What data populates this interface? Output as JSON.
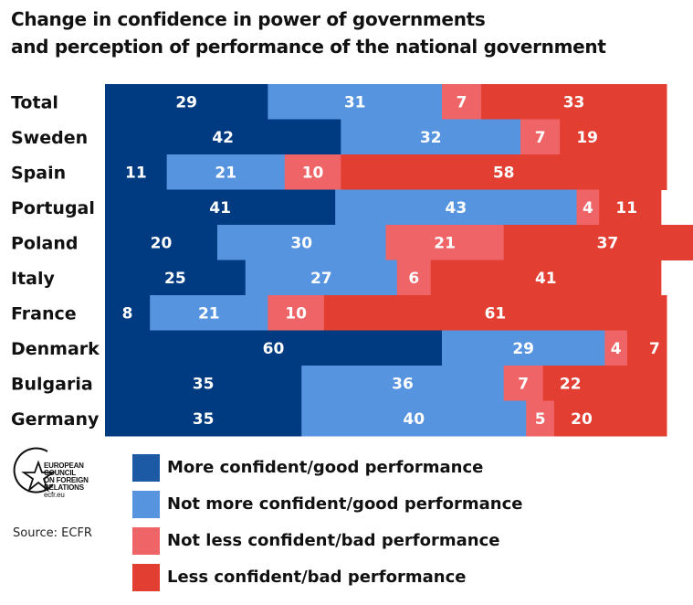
{
  "title": {
    "line1": "Change in confidence in power of governments",
    "line2": "and perception of performance of the national government"
  },
  "chart_data": {
    "type": "bar",
    "orientation": "horizontal",
    "stacked": true,
    "categories": [
      "Total",
      "Sweden",
      "Spain",
      "Portugal",
      "Poland",
      "Italy",
      "France",
      "Denmark",
      "Bulgaria",
      "Germany"
    ],
    "series": [
      {
        "name": "More confident/good performance",
        "color": "#003a80",
        "values": [
          29,
          42,
          11,
          41,
          20,
          25,
          8,
          60,
          35,
          35
        ]
      },
      {
        "name": "Not more confident/good performance",
        "color": "#5694e0",
        "values": [
          31,
          32,
          21,
          43,
          30,
          27,
          21,
          29,
          36,
          40
        ]
      },
      {
        "name": "Not less confident/bad performance",
        "color": "#ef6466",
        "values": [
          7,
          7,
          10,
          4,
          21,
          6,
          10,
          4,
          7,
          5
        ]
      },
      {
        "name": "Less confident/bad performance",
        "color": "#e33e32",
        "values": [
          33,
          19,
          58,
          11,
          37,
          41,
          61,
          7,
          22,
          20
        ]
      }
    ],
    "legend_position": "bottom",
    "grid": false
  },
  "legend": {
    "items": [
      {
        "label": "More confident/good performance",
        "color": "#1c5aa6"
      },
      {
        "label": "Not more confident/good performance",
        "color": "#5694e0"
      },
      {
        "label": "Not less confident/bad performance",
        "color": "#ef6466"
      },
      {
        "label": "Less confident/bad performance",
        "color": "#e33e32"
      }
    ]
  },
  "logo": {
    "icon": "star-circle-icon",
    "lines": [
      "EUROPEAN",
      "COUNCIL",
      "ON FOREIGN",
      "RELATIONS"
    ],
    "url": "ecfr.eu"
  },
  "source": "Source: ECFR"
}
